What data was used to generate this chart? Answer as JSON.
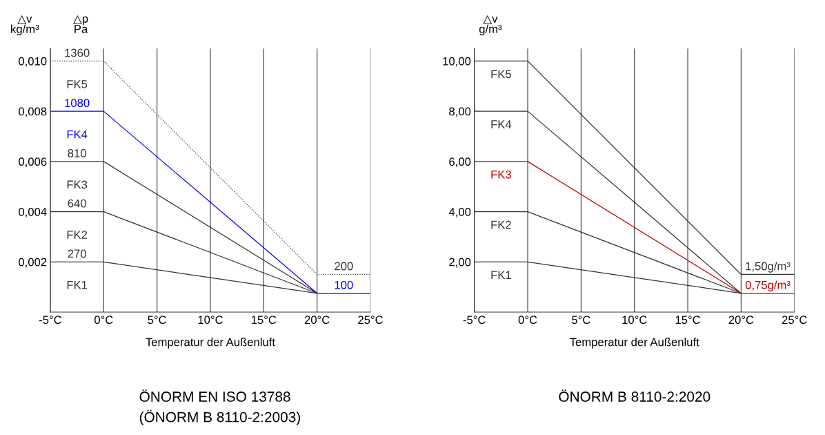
{
  "chart_data": [
    {
      "type": "line",
      "title": "ÖNORM EN ISO 13788\n(ÖNORM B 8110-2:2003)",
      "xlabel": "Temperatur der Außenluft",
      "ylabel": "△v\nkg/m³",
      "xlim": [
        -5,
        25
      ],
      "ylim": [
        0,
        0.0105
      ],
      "grid": "x",
      "legend": false,
      "xticks": [
        {
          "value": -5,
          "label": "-5°C"
        },
        {
          "value": 0,
          "label": "0°C"
        },
        {
          "value": 5,
          "label": "5°C"
        },
        {
          "value": 10,
          "label": "10°C"
        },
        {
          "value": 15,
          "label": "15°C"
        },
        {
          "value": 20,
          "label": "20°C"
        },
        {
          "value": 25,
          "label": "25°C"
        }
      ],
      "yticks": [
        {
          "value": 0.002,
          "label": "0,002"
        },
        {
          "value": 0.004,
          "label": "0,004"
        },
        {
          "value": 0.006,
          "label": "0,006"
        },
        {
          "value": 0.008,
          "label": "0,008"
        },
        {
          "value": 0.01,
          "label": "0,010"
        }
      ],
      "series": [
        {
          "name": "FK1",
          "color": "#333333",
          "x": [
            -5,
            0,
            20
          ],
          "values": [
            0.002,
            0.002,
            0.00075
          ]
        },
        {
          "name": "FK2",
          "color": "#333333",
          "x": [
            -5,
            0,
            20
          ],
          "values": [
            0.004,
            0.004,
            0.00075
          ]
        },
        {
          "name": "FK3",
          "color": "#333333",
          "x": [
            -5,
            0,
            20
          ],
          "values": [
            0.006,
            0.006,
            0.00075
          ]
        },
        {
          "name": "FK4",
          "color": "#0000ff",
          "x": [
            -5,
            0,
            20,
            25
          ],
          "values": [
            0.008,
            0.008,
            0.00075,
            0.00075
          ]
        },
        {
          "name": "FK5",
          "color": "#333333",
          "line_style": "dotted",
          "x": [
            -5,
            0,
            20,
            25
          ],
          "values": [
            0.01,
            0.01,
            0.0015,
            0.0015
          ]
        }
      ],
      "annotations": [
        "△p\nPa",
        {
          "text": "1360",
          "y": 0.01
        },
        {
          "text": "1080",
          "y": 0.008
        },
        {
          "text": "810",
          "y": 0.006
        },
        {
          "text": "640",
          "y": 0.004
        },
        {
          "text": "270",
          "y": 0.002
        },
        {
          "text": "200",
          "y": 0.0015
        },
        {
          "text": "100",
          "y": 0.00075
        }
      ]
    },
    {
      "type": "line",
      "title": "ÖNORM B 8110-2:2020",
      "xlabel": "Temperatur der Außenluft",
      "ylabel": "△v\ng/m³",
      "xlim": [
        -5,
        25
      ],
      "ylim": [
        0,
        10.5
      ],
      "grid": "x",
      "legend": false,
      "xticks": [
        {
          "value": -5,
          "label": "-5°C"
        },
        {
          "value": 0,
          "label": "0°C"
        },
        {
          "value": 5,
          "label": "5°C"
        },
        {
          "value": 10,
          "label": "10°C"
        },
        {
          "value": 15,
          "label": "15°C"
        },
        {
          "value": 20,
          "label": "20°C"
        },
        {
          "value": 25,
          "label": "25°C"
        }
      ],
      "yticks": [
        {
          "value": 2,
          "label": "2,00"
        },
        {
          "value": 4,
          "label": "4,00"
        },
        {
          "value": 6,
          "label": "6,00"
        },
        {
          "value": 8,
          "label": "8,00"
        },
        {
          "value": 10,
          "label": "10,00"
        }
      ],
      "series": [
        {
          "name": "FK1",
          "color": "#333333",
          "x": [
            -5,
            0,
            20
          ],
          "values": [
            2,
            2,
            0.75
          ]
        },
        {
          "name": "FK2",
          "color": "#333333",
          "x": [
            -5,
            0,
            20
          ],
          "values": [
            4,
            4,
            0.75
          ]
        },
        {
          "name": "FK3",
          "color": "#c00000",
          "x": [
            -5,
            0,
            20,
            25
          ],
          "values": [
            6,
            6,
            0.75,
            0.75
          ]
        },
        {
          "name": "FK4",
          "color": "#333333",
          "x": [
            -5,
            0,
            20
          ],
          "values": [
            8,
            8,
            0.75
          ]
        },
        {
          "name": "FK5",
          "color": "#333333",
          "x": [
            -5,
            0,
            20,
            25
          ],
          "values": [
            10,
            10,
            1.5,
            1.5
          ]
        }
      ],
      "annotations": [
        {
          "text": "1,50g/m³",
          "y": 1.5
        },
        {
          "text": "0,75g/m³",
          "y": 0.75
        }
      ]
    }
  ]
}
